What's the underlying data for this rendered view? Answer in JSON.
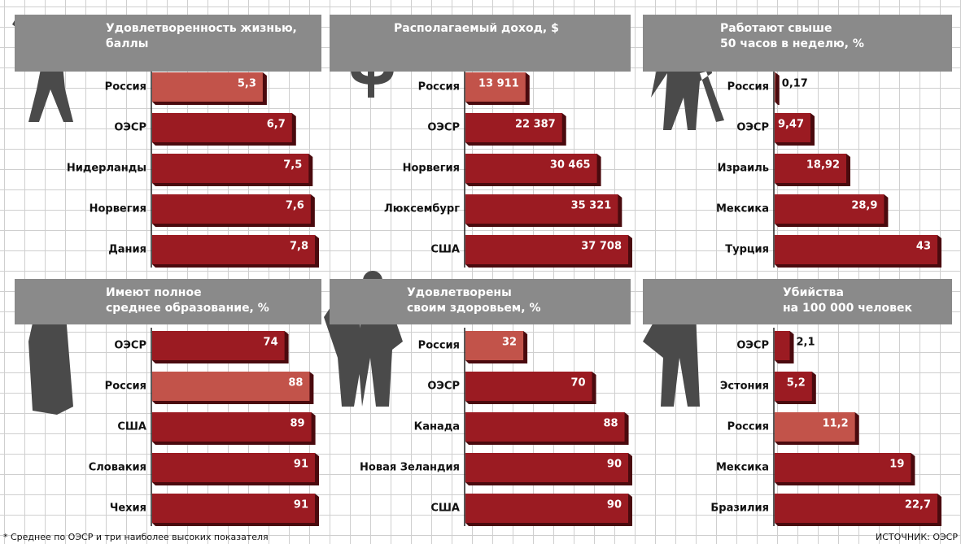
{
  "chart_data": [
    {
      "type": "bar",
      "title": "Удовлетворенность жизнью,\nбаллы",
      "categories": [
        "Россия",
        "ОЭСР",
        "Нидерланды",
        "Норвегия",
        "Дания"
      ],
      "values": [
        5.3,
        6.7,
        7.5,
        7.6,
        7.8
      ],
      "value_labels": [
        "5,3",
        "6,7",
        "7,5",
        "7,6",
        "7,8"
      ],
      "colors": [
        "#c2534a",
        "#9b1b22",
        "#9b1b22",
        "#9b1b22",
        "#9b1b22"
      ]
    },
    {
      "type": "bar",
      "title": "Располагаемый доход, $",
      "categories": [
        "Россия",
        "ОЭСР",
        "Норвегия",
        "Люксембург",
        "США"
      ],
      "values": [
        13911,
        22387,
        30465,
        35321,
        37708
      ],
      "value_labels": [
        "13 911",
        "22 387",
        "30 465",
        "35 321",
        "37 708"
      ],
      "colors": [
        "#c2534a",
        "#9b1b22",
        "#9b1b22",
        "#9b1b22",
        "#9b1b22"
      ]
    },
    {
      "type": "bar",
      "title": "Работают свыше\n50 часов в неделю, %",
      "categories": [
        "Россия",
        "ОЭСР",
        "Израиль",
        "Мексика",
        "Турция"
      ],
      "values": [
        0.17,
        9.47,
        18.92,
        28.9,
        43
      ],
      "value_labels": [
        "0,17",
        "9,47",
        "18,92",
        "28,9",
        "43"
      ],
      "colors": [
        "#c2534a",
        "#9b1b22",
        "#9b1b22",
        "#9b1b22",
        "#9b1b22"
      ]
    },
    {
      "type": "bar",
      "title": "Имеют полное\nсреднее образование, %",
      "categories": [
        "ОЭСР",
        "Россия",
        "США",
        "Словакия",
        "Чехия"
      ],
      "values": [
        74,
        88,
        89,
        91,
        91
      ],
      "colors": [
        "#9b1b22",
        "#c2534a",
        "#9b1b22",
        "#9b1b22",
        "#9b1b22"
      ]
    },
    {
      "type": "bar",
      "title": "Удовлетворены\nсвоим здоровьем, %",
      "categories": [
        "Россия",
        "ОЭСР",
        "Канада",
        "Новая Зеландия",
        "США"
      ],
      "values": [
        32,
        70,
        88,
        90,
        90
      ],
      "colors": [
        "#c2534a",
        "#9b1b22",
        "#9b1b22",
        "#9b1b22",
        "#9b1b22"
      ]
    },
    {
      "type": "bar",
      "title": "Убийства\nна 100 000 человек",
      "categories": [
        "ОЭСР",
        "Эстония",
        "Россия",
        "Мексика",
        "Бразилия"
      ],
      "values": [
        2.1,
        5.2,
        11.2,
        19,
        22.7
      ],
      "value_labels": [
        "2,1",
        "5,2",
        "11,2",
        "19",
        "22,7"
      ],
      "colors": [
        "#9b1b22",
        "#9b1b22",
        "#c2534a",
        "#9b1b22",
        "#9b1b22"
      ]
    }
  ],
  "footnote": "* Среднее по ОЭСР и три наиболее высоких показателя",
  "source": "ИСТОЧНИК: ОЭСР"
}
